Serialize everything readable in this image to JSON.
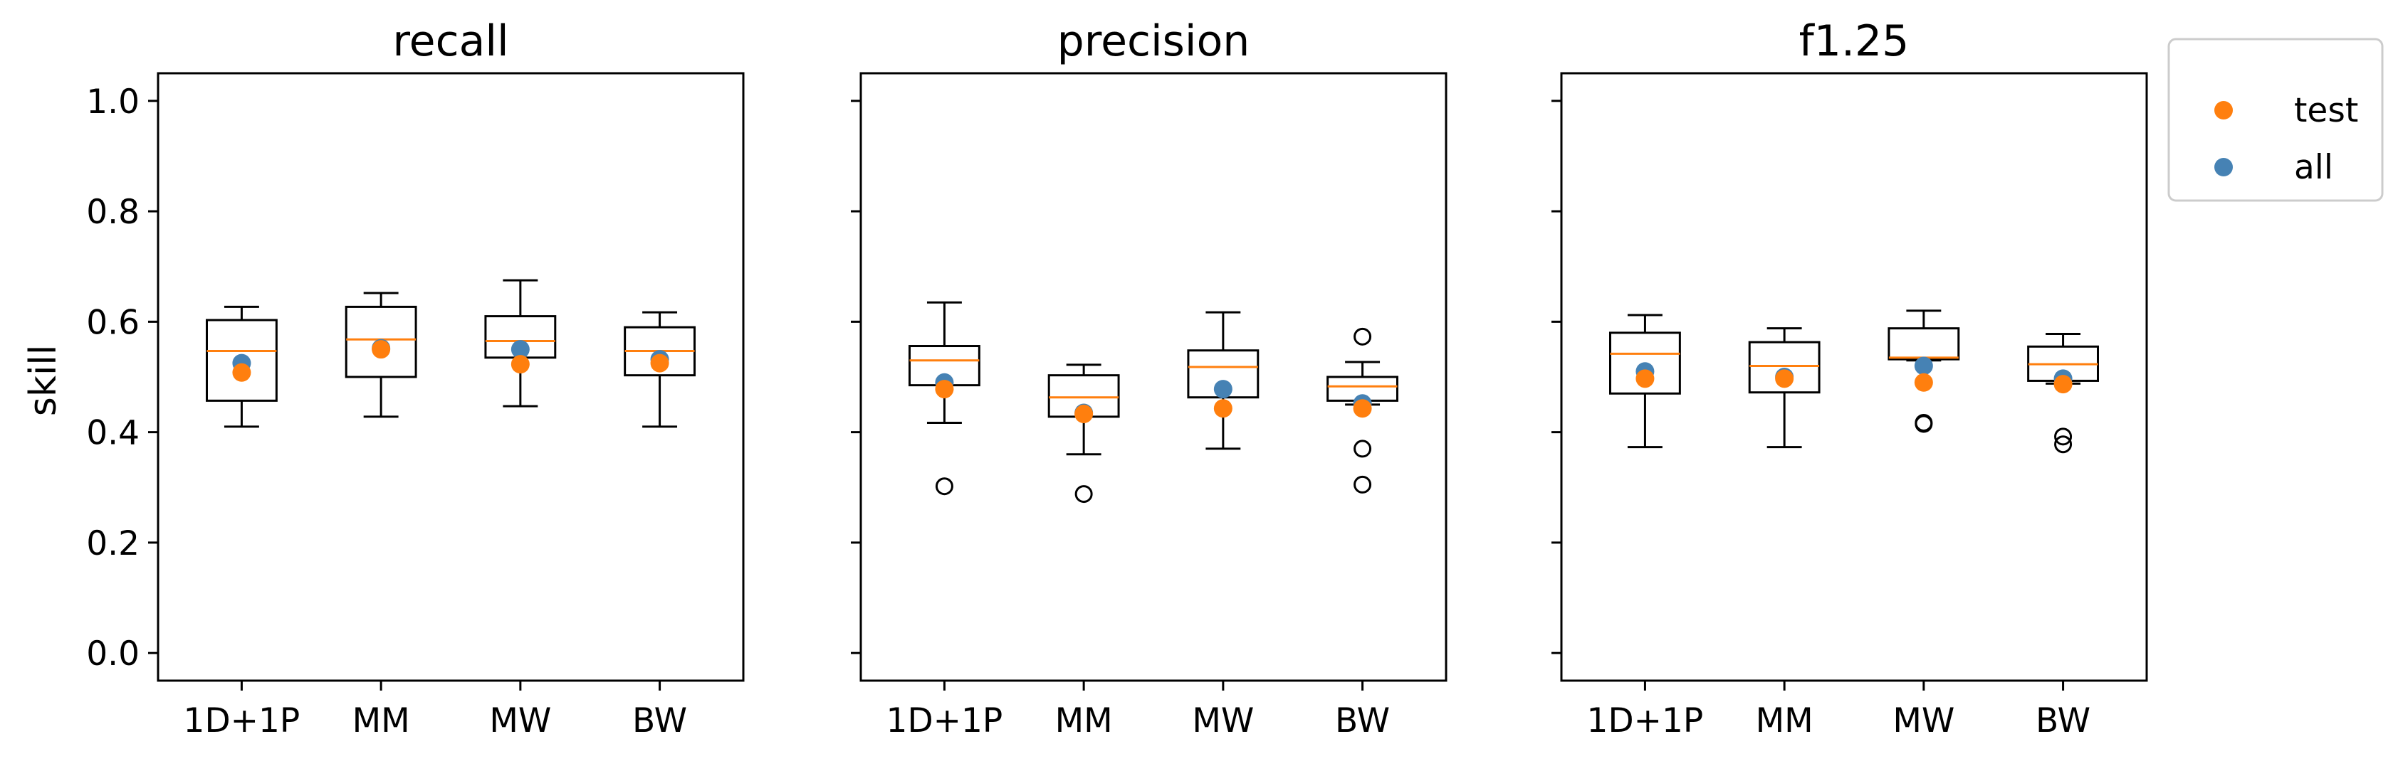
{
  "chart_data": {
    "type": "box",
    "ylabel": "skill",
    "ylim": [
      -0.05,
      1.05
    ],
    "yticks": [
      "0.0",
      "0.2",
      "0.4",
      "0.6",
      "0.8",
      "1.0"
    ],
    "ytick_values": [
      0.0,
      0.2,
      0.4,
      0.6,
      0.8,
      1.0
    ],
    "categories": [
      "1D+1P",
      "MM",
      "MW",
      "BW"
    ],
    "legend": {
      "placement": "outside-top-right",
      "entries": [
        {
          "name": "test",
          "color": "#ff7f0e"
        },
        {
          "name": "all",
          "color": "#4682b4"
        }
      ]
    },
    "colors": {
      "box": "#000000",
      "median": "#ff7f0e",
      "test": "#ff7f0e",
      "all": "#4682b4"
    },
    "panels": [
      {
        "title": "recall",
        "boxes": [
          {
            "whislo": 0.41,
            "q1": 0.457,
            "med": 0.547,
            "q3": 0.603,
            "whishi": 0.627,
            "fliers": [],
            "test": 0.508,
            "all": 0.525
          },
          {
            "whislo": 0.428,
            "q1": 0.5,
            "med": 0.568,
            "q3": 0.627,
            "whishi": 0.652,
            "fliers": [],
            "test": 0.55,
            "all": 0.552
          },
          {
            "whislo": 0.447,
            "q1": 0.535,
            "med": 0.565,
            "q3": 0.61,
            "whishi": 0.675,
            "fliers": [],
            "test": 0.523,
            "all": 0.55
          },
          {
            "whislo": 0.41,
            "q1": 0.503,
            "med": 0.547,
            "q3": 0.59,
            "whishi": 0.617,
            "fliers": [],
            "test": 0.525,
            "all": 0.532
          }
        ]
      },
      {
        "title": "precision",
        "boxes": [
          {
            "whislo": 0.417,
            "q1": 0.485,
            "med": 0.53,
            "q3": 0.556,
            "whishi": 0.635,
            "fliers": [
              0.302
            ],
            "test": 0.478,
            "all": 0.49
          },
          {
            "whislo": 0.36,
            "q1": 0.428,
            "med": 0.463,
            "q3": 0.503,
            "whishi": 0.522,
            "fliers": [
              0.288
            ],
            "test": 0.433,
            "all": 0.435
          },
          {
            "whislo": 0.37,
            "q1": 0.463,
            "med": 0.518,
            "q3": 0.548,
            "whishi": 0.617,
            "fliers": [],
            "test": 0.443,
            "all": 0.478
          },
          {
            "whislo": 0.45,
            "q1": 0.457,
            "med": 0.483,
            "q3": 0.5,
            "whishi": 0.527,
            "fliers": [
              0.573,
              0.37,
              0.305
            ],
            "test": 0.443,
            "all": 0.452
          }
        ]
      },
      {
        "title": "f1.25",
        "boxes": [
          {
            "whislo": 0.373,
            "q1": 0.47,
            "med": 0.542,
            "q3": 0.58,
            "whishi": 0.612,
            "fliers": [],
            "test": 0.497,
            "all": 0.51
          },
          {
            "whislo": 0.373,
            "q1": 0.472,
            "med": 0.52,
            "q3": 0.563,
            "whishi": 0.588,
            "fliers": [],
            "test": 0.497,
            "all": 0.5
          },
          {
            "whislo": 0.53,
            "q1": 0.532,
            "med": 0.535,
            "q3": 0.588,
            "whishi": 0.62,
            "fliers": [
              0.417,
              0.415
            ],
            "test": 0.49,
            "all": 0.52
          },
          {
            "whislo": 0.488,
            "q1": 0.493,
            "med": 0.523,
            "q3": 0.555,
            "whishi": 0.578,
            "fliers": [
              0.392,
              0.378
            ],
            "test": 0.487,
            "all": 0.497
          }
        ]
      }
    ]
  }
}
